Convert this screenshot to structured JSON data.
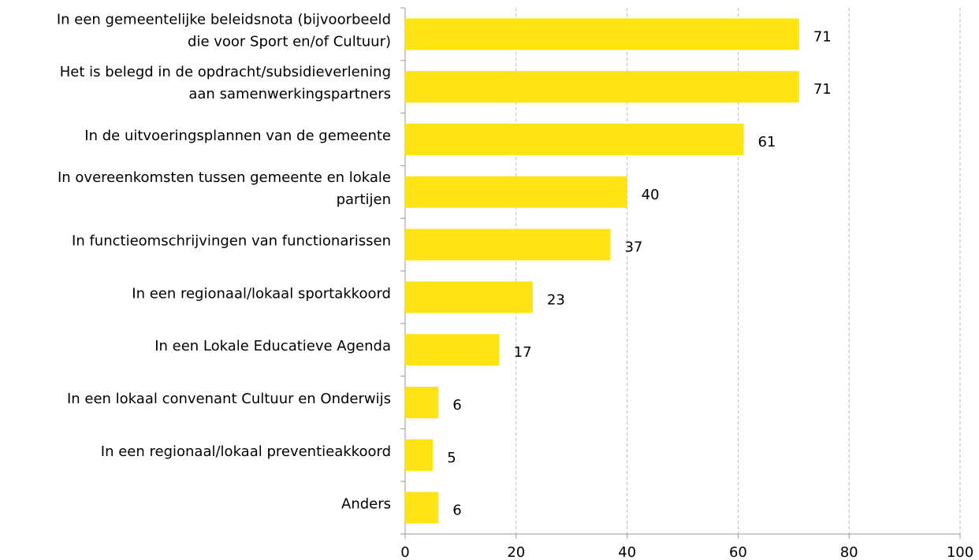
{
  "chart_data": {
    "type": "bar",
    "orientation": "horizontal",
    "categories": [
      [
        "In een gemeentelijke beleidsnota (bijvoorbeeld",
        "die voor Sport en/of Cultuur)"
      ],
      [
        "Het is belegd in de opdracht/subsidieverlening",
        "aan samenwerkingspartners"
      ],
      [
        "In de uitvoeringsplannen van de gemeente"
      ],
      [
        "In overeenkomsten tussen gemeente en lokale",
        "partijen"
      ],
      [
        "In functieomschrijvingen van functionarissen"
      ],
      [
        "In een regionaal/lokaal sportakkoord"
      ],
      [
        "In een Lokale Educatieve Agenda"
      ],
      [
        "In een lokaal convenant Cultuur en Onderwijs"
      ],
      [
        "In een regionaal/lokaal preventieakkoord"
      ],
      [
        "Anders"
      ]
    ],
    "values": [
      71,
      71,
      61,
      40,
      37,
      23,
      17,
      6,
      5,
      6
    ],
    "color": "#ffe314",
    "xlim": [
      0,
      100
    ],
    "xticks": [
      0,
      20,
      40,
      60,
      80,
      100
    ],
    "grid": true
  }
}
